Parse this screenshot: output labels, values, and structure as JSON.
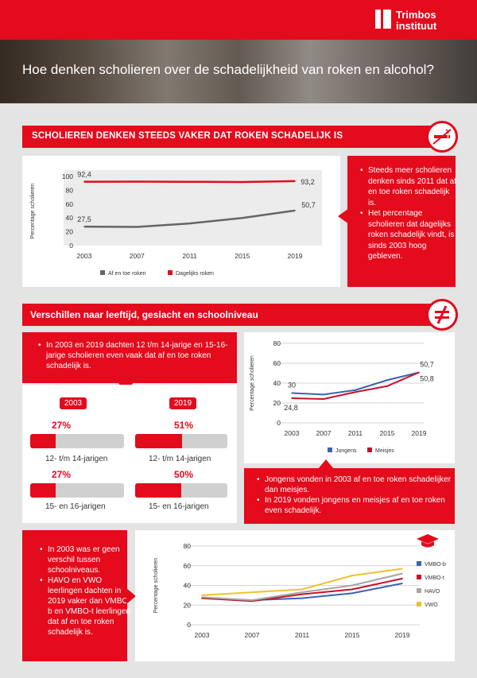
{
  "header": {
    "logo_line1": "Trimbos",
    "logo_line2": "instituut",
    "title": "Hoe denken scholieren over de schadelijkheid van roken en alcohol?"
  },
  "section1": {
    "title": "SCHOLIEREN DENKEN STEEDS VAKER DAT ROKEN SCHADELIJK IS",
    "icon": "no-smoking-icon",
    "bullets": [
      "Steeds meer scholieren denken sinds 2011 dat af en toe roken schadelijk is.",
      "Het percentage scholieren dat dagelijks roken schadelijk vindt, is sinds 2003 hoog gebleven."
    ]
  },
  "section2": {
    "title": "Verschillen naar leeftijd, geslacht en schoolniveau",
    "icon": "not-equal-icon",
    "age_text": "In 2003 en 2019 dachten 12 t/m 14-jarige en 15-16-jarige scholieren even vaak dat af en toe roken schadelijk is.",
    "age_bars": {
      "year_2003": "2003",
      "year_2019": "2019",
      "items": [
        {
          "year": "2003",
          "pct_label": "27%",
          "value": 27,
          "label": "12- t/m 14-jarigen"
        },
        {
          "year": "2019",
          "pct_label": "51%",
          "value": 51,
          "label": "12- t/m 14-jarigen"
        },
        {
          "year": "2003",
          "pct_label": "27%",
          "value": 27,
          "label": "15- en 16-jarigen"
        },
        {
          "year": "2019",
          "pct_label": "50%",
          "value": 50,
          "label": "15- en 16-jarigen"
        }
      ]
    },
    "gender_bullets": [
      "Jongens vonden in 2003 af en toe roken schadelijker dan meisjes.",
      "In 2019 vonden jongens en meisjes af en toe roken even schadelijk."
    ],
    "level_bullets": [
      "In 2003 was er geen verschil tussen schoolniveaus.",
      "HAVO en VWO leerlingen dachten in 2019 vaker dan VMBO-b en VMBO-t leerlingen dat af en toe roken schadelijk is."
    ],
    "level_icon": "graduation-cap-icon"
  },
  "chart_data": [
    {
      "type": "area",
      "ylabel": "Percentage scholieren",
      "xlabel": "",
      "ylim": [
        0,
        100
      ],
      "yticks": [
        0,
        20,
        40,
        60,
        80,
        100
      ],
      "x": [
        "2003",
        "2007",
        "2011",
        "2015",
        "2019"
      ],
      "grid": false,
      "legend": "bottom",
      "series": [
        {
          "name": "Af en toe roken",
          "color": "#666666",
          "values": [
            27.5,
            27,
            32,
            40,
            50.7
          ],
          "labels": [
            "27,5",
            "",
            "",
            "",
            "50,7"
          ]
        },
        {
          "name": "Dagelijks roken",
          "color": "#e30b1c",
          "values": [
            92.4,
            92.5,
            92.3,
            92,
            93.2
          ],
          "labels": [
            "92,4",
            "",
            "",
            "",
            "93,2"
          ]
        }
      ]
    },
    {
      "type": "line",
      "ylabel": "Percentage scholieren",
      "xlabel": "",
      "ylim": [
        0,
        80
      ],
      "yticks": [
        0,
        20,
        40,
        60,
        80
      ],
      "x": [
        "2003",
        "2007",
        "2011",
        "2015",
        "2019"
      ],
      "grid": true,
      "legend": "bottom",
      "series": [
        {
          "name": "Jongens",
          "color": "#3b63ad",
          "values": [
            30,
            28.5,
            33,
            43,
            50.7
          ],
          "labels": [
            "30",
            "",
            "",
            "",
            "50,7"
          ]
        },
        {
          "name": "Meisjes",
          "color": "#c8102e",
          "values": [
            24.8,
            24,
            31,
            37,
            50.8
          ],
          "labels": [
            "24,8",
            "",
            "",
            "",
            "50,8"
          ]
        }
      ]
    },
    {
      "type": "line",
      "ylabel": "Percentage scholieren",
      "xlabel": "",
      "ylim": [
        0,
        80
      ],
      "yticks": [
        0,
        20,
        40,
        60,
        80
      ],
      "x": [
        "2003",
        "2007",
        "2011",
        "2015",
        "2019"
      ],
      "grid": true,
      "legend": "right",
      "series": [
        {
          "name": "VMBO-b",
          "color": "#3b63ad",
          "values": [
            27,
            25,
            27,
            32,
            42
          ],
          "labels": [
            "",
            "",
            "",
            "",
            ""
          ]
        },
        {
          "name": "VMBO-t",
          "color": "#c8102e",
          "values": [
            27,
            24,
            31,
            36,
            47
          ],
          "labels": [
            "",
            "",
            "",
            "",
            ""
          ]
        },
        {
          "name": "HAVO",
          "color": "#a5a5a5",
          "values": [
            28,
            25,
            33,
            40,
            52
          ],
          "labels": [
            "",
            "",
            "",
            "",
            ""
          ]
        },
        {
          "name": "VWO",
          "color": "#f2c12e",
          "values": [
            30,
            33,
            36,
            50,
            57
          ],
          "labels": [
            "",
            "",
            "",
            "",
            ""
          ]
        }
      ]
    }
  ]
}
